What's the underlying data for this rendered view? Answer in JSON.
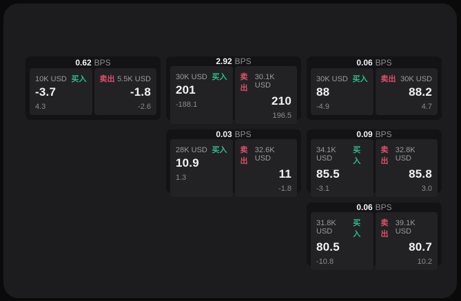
{
  "labels": {
    "bps_unit": "BPS",
    "buy": "买入",
    "sell": "卖出"
  },
  "colors": {
    "buy": "#2ebd85",
    "sell": "#dd5068"
  },
  "cards": [
    {
      "bps": "0.62",
      "row": 1,
      "col": 1,
      "buy": {
        "amount": "10K USD",
        "value": "-3.7",
        "delta": "4.3"
      },
      "sell": {
        "amount": "5.5K USD",
        "value": "-1.8",
        "delta": "-2.6"
      }
    },
    {
      "bps": "2.92",
      "row": 1,
      "col": 2,
      "buy": {
        "amount": "30K USD",
        "value": "201",
        "delta": "-188.1"
      },
      "sell": {
        "amount": "30.1K USD",
        "value": "210",
        "delta": "196.5"
      }
    },
    {
      "bps": "0.06",
      "row": 1,
      "col": 3,
      "buy": {
        "amount": "30K USD",
        "value": "88",
        "delta": "-4.9"
      },
      "sell": {
        "amount": "30K USD",
        "value": "88.2",
        "delta": "4.7"
      }
    },
    {
      "bps": "0.03",
      "row": 2,
      "col": 2,
      "buy": {
        "amount": "28K USD",
        "value": "10.9",
        "delta": "1.3"
      },
      "sell": {
        "amount": "32.6K USD",
        "value": "11",
        "delta": "-1.8"
      }
    },
    {
      "bps": "0.09",
      "row": 2,
      "col": 3,
      "buy": {
        "amount": "34.1K USD",
        "value": "85.5",
        "delta": "-3.1"
      },
      "sell": {
        "amount": "32.8K USD",
        "value": "85.8",
        "delta": "3.0"
      }
    },
    {
      "bps": "0.06",
      "row": 3,
      "col": 3,
      "buy": {
        "amount": "31.8K USD",
        "value": "80.5",
        "delta": "-10.8"
      },
      "sell": {
        "amount": "39.1K USD",
        "value": "80.7",
        "delta": "10.2"
      }
    }
  ]
}
